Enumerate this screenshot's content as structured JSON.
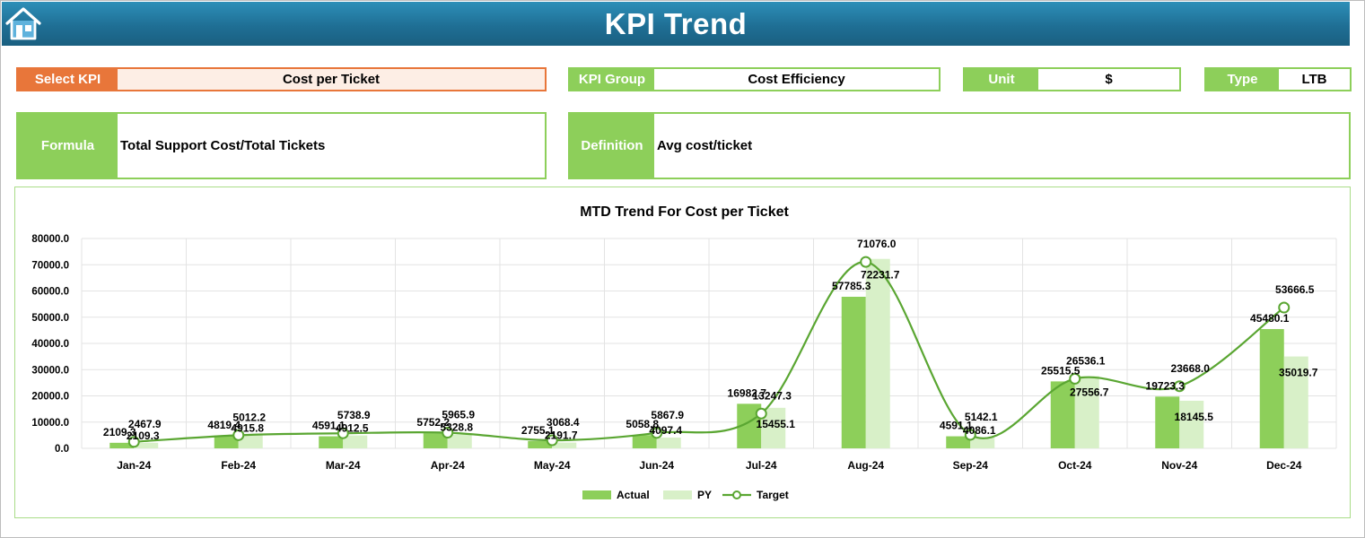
{
  "header": {
    "title": "KPI Trend",
    "home_icon": "home-icon"
  },
  "filters": {
    "select_kpi_label": "Select KPI",
    "select_kpi_value": "Cost per Ticket",
    "kpi_group_label": "KPI Group",
    "kpi_group_value": "Cost Efficiency",
    "unit_label": "Unit",
    "unit_value": "$",
    "type_label": "Type",
    "type_value": "LTB"
  },
  "info": {
    "formula_label": "Formula",
    "formula_value": "Total Support Cost/Total Tickets",
    "definition_label": "Definition",
    "definition_value": "Avg cost/ticket"
  },
  "colors": {
    "header": "#1f6f95",
    "accent_green": "#8dcf5a",
    "kpi_orange": "#e8763a",
    "actual": "#8dcf5a",
    "py": "#d8f0c8",
    "target": "#5aa632"
  },
  "chart_data": {
    "type": "bar",
    "title": "MTD Trend For Cost per Ticket",
    "categories": [
      "Jan-24",
      "Feb-24",
      "Mar-24",
      "Apr-24",
      "May-24",
      "Jun-24",
      "Jul-24",
      "Aug-24",
      "Sep-24",
      "Oct-24",
      "Nov-24",
      "Dec-24"
    ],
    "series": [
      {
        "name": "Actual",
        "type": "bar",
        "values": [
          2109.3,
          4819.4,
          4591.1,
          5752.2,
          2755.1,
          5058.8,
          16982.7,
          57785.3,
          4591.1,
          25515.5,
          19723.3,
          45480.1
        ]
      },
      {
        "name": "PY",
        "type": "bar",
        "values": [
          2109.3,
          4915.8,
          4912.5,
          5328.8,
          2191.7,
          4097.4,
          15455.1,
          72231.7,
          4086.1,
          27556.7,
          18145.5,
          35019.7
        ]
      },
      {
        "name": "Target",
        "type": "line",
        "values": [
          2467.9,
          5012.2,
          5738.9,
          5965.9,
          3068.4,
          5867.9,
          13247.3,
          71076.0,
          5142.1,
          26536.1,
          23668.0,
          53666.5
        ]
      }
    ],
    "y_ticks": [
      "0.0",
      "10000.0",
      "20000.0",
      "30000.0",
      "40000.0",
      "50000.0",
      "60000.0",
      "70000.0",
      "80000.0"
    ],
    "ylim": [
      0,
      80000
    ],
    "grid": true,
    "legend_position": "bottom"
  }
}
